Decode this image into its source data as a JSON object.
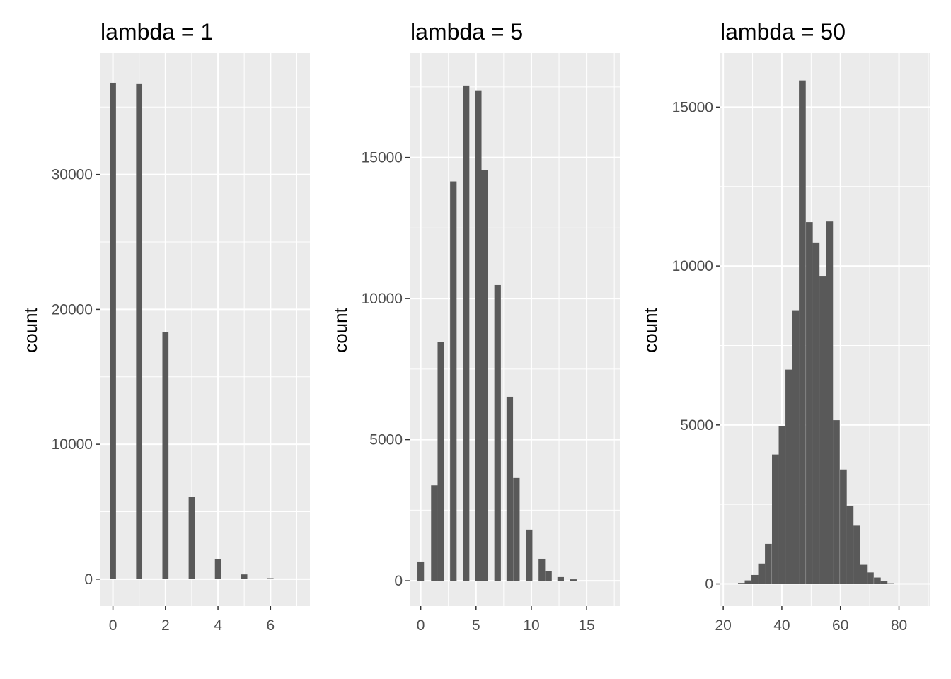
{
  "chart_data": [
    {
      "type": "bar",
      "title": "lambda = 1",
      "xlabel": "",
      "ylabel": "count",
      "xlim": [
        -0.5,
        7.5
      ],
      "ylim": [
        -2000,
        39000
      ],
      "x_ticks": [
        0,
        2,
        4,
        6
      ],
      "y_ticks": [
        0,
        10000,
        20000,
        30000
      ],
      "bin_width": 0.233,
      "bars": [
        {
          "x": 0,
          "y": 36800
        },
        {
          "x": 1,
          "y": 36700
        },
        {
          "x": 2,
          "y": 18300
        },
        {
          "x": 3,
          "y": 6100
        },
        {
          "x": 4,
          "y": 1500
        },
        {
          "x": 5,
          "y": 350
        },
        {
          "x": 6,
          "y": 70
        }
      ]
    },
    {
      "type": "bar",
      "title": "lambda = 5",
      "xlabel": "",
      "ylabel": "count",
      "xlim": [
        -1,
        18
      ],
      "ylim": [
        -900,
        18700
      ],
      "x_ticks": [
        0,
        5,
        10,
        15
      ],
      "y_ticks": [
        0,
        5000,
        10000,
        15000
      ],
      "bin_width": 0.59,
      "bars": [
        {
          "x": 0,
          "y": 680
        },
        {
          "x": 1.23,
          "y": 3380
        },
        {
          "x": 1.82,
          "y": 8450
        },
        {
          "x": 2.95,
          "y": 14150
        },
        {
          "x": 4.1,
          "y": 17550
        },
        {
          "x": 5.2,
          "y": 17380
        },
        {
          "x": 5.78,
          "y": 14560
        },
        {
          "x": 6.95,
          "y": 10480
        },
        {
          "x": 8.05,
          "y": 6520
        },
        {
          "x": 8.65,
          "y": 3640
        },
        {
          "x": 9.8,
          "y": 1810
        },
        {
          "x": 10.95,
          "y": 780
        },
        {
          "x": 11.55,
          "y": 330
        },
        {
          "x": 12.65,
          "y": 130
        },
        {
          "x": 13.8,
          "y": 50
        }
      ]
    },
    {
      "type": "bar",
      "title": "lambda = 50",
      "xlabel": "",
      "ylabel": "count",
      "xlim": [
        19,
        90.5
      ],
      "ylim": [
        -700,
        16700
      ],
      "x_ticks": [
        20,
        40,
        60,
        80
      ],
      "y_ticks": [
        0,
        5000,
        10000,
        15000
      ],
      "bin_width": 2.33,
      "bars": [
        {
          "x": 26.2,
          "y": 30
        },
        {
          "x": 28.5,
          "y": 110
        },
        {
          "x": 30.8,
          "y": 280
        },
        {
          "x": 33.1,
          "y": 640
        },
        {
          "x": 35.4,
          "y": 1260
        },
        {
          "x": 37.8,
          "y": 4070
        },
        {
          "x": 40.1,
          "y": 4960
        },
        {
          "x": 42.4,
          "y": 6740
        },
        {
          "x": 44.7,
          "y": 8610
        },
        {
          "x": 47.0,
          "y": 15840
        },
        {
          "x": 49.4,
          "y": 11380
        },
        {
          "x": 51.7,
          "y": 10740
        },
        {
          "x": 54.0,
          "y": 9690
        },
        {
          "x": 56.3,
          "y": 11400
        },
        {
          "x": 58.6,
          "y": 5150
        },
        {
          "x": 61.0,
          "y": 3600
        },
        {
          "x": 63.3,
          "y": 2460
        },
        {
          "x": 65.6,
          "y": 1850
        },
        {
          "x": 67.9,
          "y": 600
        },
        {
          "x": 70.2,
          "y": 360
        },
        {
          "x": 72.6,
          "y": 200
        },
        {
          "x": 74.9,
          "y": 90
        },
        {
          "x": 77.2,
          "y": 20
        }
      ]
    }
  ]
}
